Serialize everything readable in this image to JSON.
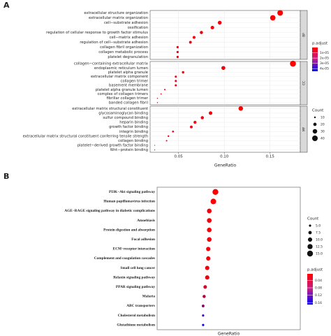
{
  "chart_data": [
    {
      "type": "dot",
      "panel": "A",
      "xlabel": "GeneRatio",
      "grid": true,
      "xlim": [
        0.019,
        0.183
      ],
      "xticks": [
        {
          "value": 0.05,
          "label": "0.05"
        },
        {
          "value": 0.1,
          "label": "0.10"
        },
        {
          "value": 0.15,
          "label": "0.15"
        }
      ],
      "facets": [
        {
          "name": "BP",
          "categories": [
            "extracellular structure organization",
            "extracellular matrix organization",
            "cell−substrate adhesion",
            "ossification",
            "regulation of cellular response to growth factor stimulus",
            "cell−matrix adhesion",
            "regulation of cell−substrate adhesion",
            "collagen fibril organization",
            "collagen metabolic process",
            "platelet degranulation"
          ],
          "values": [
            0.161,
            0.153,
            0.095,
            0.087,
            0.075,
            0.067,
            0.063,
            0.049,
            0.049,
            0.049
          ],
          "count": [
            40,
            38,
            24,
            22,
            19,
            17,
            16,
            13,
            13,
            13
          ],
          "padj": [
            1e-07,
            1e-07,
            2e-06,
            2e-06,
            3e-06,
            3e-06,
            3e-06,
            4e-06,
            4e-06,
            4e-06
          ]
        },
        {
          "name": "CC",
          "categories": [
            "collagen−containing extracellular matrix",
            "endoplasmic reticulum lumen",
            "platelet alpha granule",
            "extracellular matrix component",
            "collagen trimer",
            "basement membrane",
            "platelet alpha granule lumen",
            "complex of collagen trimers",
            "fibrillar collagen trimer",
            "banded collagen fibril"
          ],
          "values": [
            0.175,
            0.099,
            0.055,
            0.047,
            0.047,
            0.047,
            0.035,
            0.031,
            0.027,
            0.027
          ],
          "count": [
            44,
            25,
            14,
            12,
            12,
            12,
            9,
            8,
            7,
            7
          ],
          "padj": [
            1e-07,
            2e-06,
            3e-06,
            3e-06,
            3e-06,
            3e-06,
            4e-06,
            4e-06,
            5e-06,
            5e-06
          ]
        },
        {
          "name": "MF",
          "categories": [
            "extracellular matrix structural constituent",
            "glycosaminoglycan binding",
            "sulfur compound binding",
            "heparin binding",
            "growth factor binding",
            "integrin binding",
            "extracellular matrix structural constituent conferring tensile strength",
            "collagen binding",
            "platelet−derived growth factor binding",
            "Wnt−protein binding"
          ],
          "values": [
            0.118,
            0.085,
            0.076,
            0.068,
            0.064,
            0.044,
            0.039,
            0.037,
            0.024,
            0.024
          ],
          "count": [
            30,
            22,
            19,
            17,
            16,
            11,
            10,
            9,
            6,
            6
          ],
          "padj": [
            1e-07,
            2e-06,
            3e-06,
            3e-06,
            4e-06,
            5e-06,
            5e-06,
            6e-06,
            3e-05,
            4.2e-05
          ]
        }
      ],
      "size_title": "Count",
      "size_ticks": [
        10,
        20,
        30,
        40
      ],
      "color_title": "p.adjust",
      "clim": [
        0,
        4.5e-05
      ],
      "color_ticks": [
        {
          "value": 1e-05,
          "label": "1e-05"
        },
        {
          "value": 2e-05,
          "label": "2e-05"
        },
        {
          "value": 3e-05,
          "label": "3e-05"
        },
        {
          "value": 4e-05,
          "label": "4e-05"
        }
      ],
      "colors": [
        "#ff0000",
        "#0000ff"
      ]
    },
    {
      "type": "dot",
      "panel": "B",
      "xlabel": "GeneRatio",
      "grid": false,
      "xlim": [
        0.02,
        0.16
      ],
      "facets": [
        {
          "categories": [
            "PI3K−Akt signaling pathway",
            "Human papillomavirus infection",
            "AGE−RAGE signaling pathway in diabetic complications",
            "Amoebiasis",
            "Protein digestion and absorption",
            "Focal adhesion",
            "ECM−receptor interaction",
            "Complement and coagulation cascades",
            "Small cell lung cancer",
            "Relaxin signaling pathway",
            "PPAR signaling pathway",
            "Malaria",
            "ABC transporters",
            "Cholesterol metabolism",
            "Glutathione metabolism"
          ],
          "values": [
            0.077,
            0.075,
            0.071,
            0.071,
            0.071,
            0.071,
            0.07,
            0.07,
            0.069,
            0.069,
            0.067,
            0.066,
            0.065,
            0.065,
            0.065
          ],
          "count": [
            15,
            14,
            11,
            11,
            11,
            11,
            10,
            10,
            10,
            10,
            8,
            7,
            6,
            5,
            5
          ],
          "padj": [
            0.005,
            0.006,
            0.01,
            0.01,
            0.01,
            0.012,
            0.012,
            0.013,
            0.015,
            0.016,
            0.03,
            0.05,
            0.08,
            0.12,
            0.16
          ]
        }
      ],
      "size_title": "Count",
      "size_ticks": [
        {
          "value": 5,
          "label": "5.0"
        },
        {
          "value": 7.5,
          "label": "7.5"
        },
        {
          "value": 10,
          "label": "10.0"
        },
        {
          "value": 12.5,
          "label": "12.5"
        },
        {
          "value": 15,
          "label": "15.0"
        }
      ],
      "color_title": "p.adjust",
      "clim": [
        0.005,
        0.17
      ],
      "color_ticks": [
        0.04,
        0.08,
        0.12,
        0.16
      ],
      "colors": [
        "#ff0000",
        "#0000ff"
      ]
    }
  ]
}
